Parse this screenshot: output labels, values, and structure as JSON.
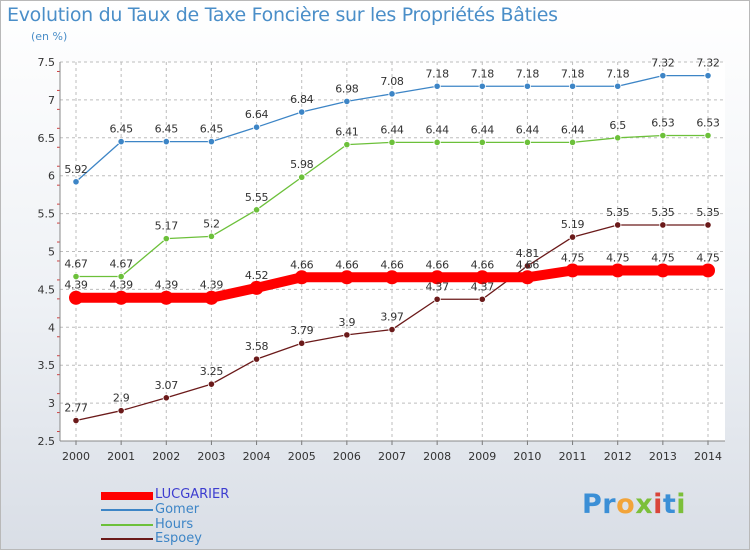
{
  "title": "Evolution du Taux de Taxe Foncière sur les Propriétés Bâties",
  "subtitle": "(en %)",
  "logo": {
    "letters": [
      {
        "ch": "P",
        "color": "#3b8fd6"
      },
      {
        "ch": "r",
        "color": "#3b8fd6"
      },
      {
        "ch": "o",
        "color": "#f2a43a"
      },
      {
        "ch": "x",
        "color": "#7cbf3a"
      },
      {
        "ch": "i",
        "color": "#d9453a"
      },
      {
        "ch": "t",
        "color": "#3b8fd6"
      },
      {
        "ch": "i",
        "color": "#7cbf3a"
      }
    ]
  },
  "chart_data": {
    "type": "line",
    "title": "Evolution du Taux de Taxe Foncière sur les Propriétés Bâties",
    "ylabel": "(en %)",
    "xlabel": "",
    "x": [
      "2000",
      "2001",
      "2002",
      "2003",
      "2004",
      "2005",
      "2006",
      "2007",
      "2008",
      "2009",
      "2010",
      "2011",
      "2012",
      "2013",
      "2014"
    ],
    "ylim": [
      2.5,
      7.5
    ],
    "yticks": [
      "2.5",
      "3",
      "3.5",
      "4",
      "4.5",
      "5",
      "5.5",
      "6",
      "6.5",
      "7",
      "7.5"
    ],
    "grid": true,
    "legend_position": "bottom-left",
    "series": [
      {
        "name": "LUCGARIER",
        "color": "#ff0000",
        "values": [
          4.39,
          4.39,
          4.39,
          4.39,
          4.52,
          4.66,
          4.66,
          4.66,
          4.66,
          4.66,
          4.66,
          4.75,
          4.75,
          4.75,
          4.75
        ]
      },
      {
        "name": "Gomer",
        "color": "#3d85c6",
        "values": [
          5.92,
          6.45,
          6.45,
          6.45,
          6.64,
          6.84,
          6.98,
          7.08,
          7.18,
          7.18,
          7.18,
          7.18,
          7.18,
          7.32,
          7.32
        ]
      },
      {
        "name": "Hours",
        "color": "#6cc03a",
        "values": [
          4.67,
          4.67,
          5.17,
          5.2,
          5.55,
          5.98,
          6.41,
          6.44,
          6.44,
          6.44,
          6.44,
          6.44,
          6.5,
          6.53,
          6.53
        ]
      },
      {
        "name": "Espoey",
        "color": "#6b1a1a",
        "values": [
          2.77,
          2.9,
          3.07,
          3.25,
          3.58,
          3.79,
          3.9,
          3.97,
          4.37,
          4.37,
          4.81,
          5.19,
          5.35,
          5.35,
          5.35
        ]
      }
    ]
  }
}
